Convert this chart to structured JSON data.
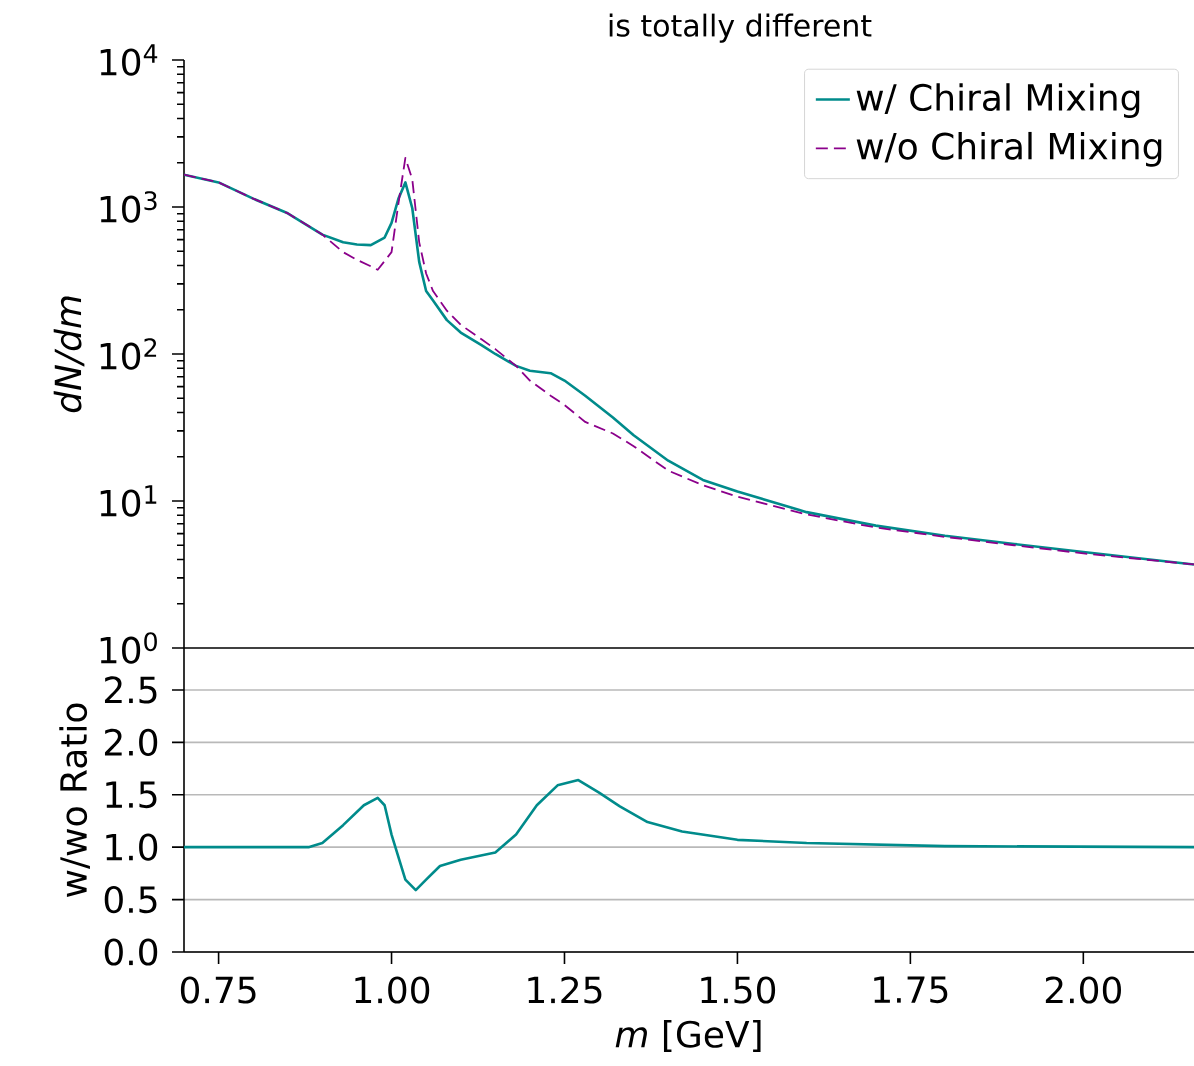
{
  "chart_data": [
    {
      "type": "line",
      "title": "is totally different",
      "ylabel": "dN/dm",
      "log": "y",
      "legend": "top right",
      "tick_labels": "y",
      "xlim": [
        0.7,
        2.16
      ],
      "ylim": [
        1,
        10000
      ],
      "yticks": [
        {
          "value": 1,
          "label": "10$^{0}$"
        },
        {
          "value": 10,
          "label": "10$^{1}$"
        },
        {
          "value": 100,
          "label": "10$^{2}$"
        },
        {
          "value": 1000,
          "label": "10$^{3}$"
        },
        {
          "value": 10000,
          "label": "10$^{4}$"
        }
      ],
      "series": [
        {
          "name": "w/ Chiral Mixing",
          "color": "#008b8b",
          "line_style": "solid",
          "x": [
            0.7,
            0.75,
            0.8,
            0.85,
            0.9,
            0.93,
            0.95,
            0.97,
            0.99,
            1.0,
            1.01,
            1.02,
            1.03,
            1.04,
            1.05,
            1.06,
            1.08,
            1.1,
            1.13,
            1.15,
            1.18,
            1.2,
            1.23,
            1.25,
            1.28,
            1.32,
            1.35,
            1.4,
            1.45,
            1.5,
            1.6,
            1.7,
            1.8,
            1.9,
            2.0,
            2.16
          ],
          "values": [
            1660,
            1470,
            1140,
            906,
            649,
            575,
            556,
            550,
            620,
            780,
            1140,
            1470,
            980,
            423,
            268,
            231,
            170,
            140,
            115,
            100,
            83,
            77,
            74,
            66,
            52,
            37,
            28,
            18.8,
            13.9,
            11.6,
            8.4,
            6.8,
            5.8,
            5.1,
            4.5,
            3.7
          ]
        },
        {
          "name": "w/o Chiral Mixing",
          "color": "#8b008b",
          "line_style": "dashed",
          "x": [
            0.7,
            0.75,
            0.8,
            0.85,
            0.9,
            0.93,
            0.95,
            0.97,
            0.98,
            1.0,
            1.01,
            1.02,
            1.03,
            1.04,
            1.05,
            1.06,
            1.08,
            1.1,
            1.13,
            1.15,
            1.18,
            1.2,
            1.23,
            1.25,
            1.28,
            1.32,
            1.35,
            1.4,
            1.45,
            1.5,
            1.6,
            1.7,
            1.8,
            1.9,
            2.0,
            2.16
          ],
          "values": [
            1660,
            1470,
            1140,
            906,
            649,
            493,
            437,
            395,
            374,
            493,
            1060,
            2160,
            1540,
            575,
            353,
            268,
            197,
            158,
            126,
            108,
            83,
            66,
            52,
            45,
            34.5,
            28.8,
            23.6,
            16.1,
            12.8,
            10.7,
            8.1,
            6.6,
            5.7,
            5.0,
            4.4,
            3.7
          ]
        }
      ]
    },
    {
      "type": "line",
      "xlabel": "*m* [GeV]",
      "ylabel": "w/wo Ratio",
      "grid": "y",
      "xlim": [
        0.7,
        2.16
      ],
      "ylim": [
        0,
        2.9
      ],
      "xticks": [
        {
          "value": 0.75,
          "label": "0.75"
        },
        {
          "value": 1.0,
          "label": "1.00"
        },
        {
          "value": 1.25,
          "label": "1.25"
        },
        {
          "value": 1.5,
          "label": "1.50"
        },
        {
          "value": 1.75,
          "label": "1.75"
        },
        {
          "value": 2.0,
          "label": "2.00"
        }
      ],
      "yticks": [
        {
          "value": 0,
          "label": "0.0"
        },
        {
          "value": 0.5,
          "label": "0.5"
        },
        {
          "value": 1.0,
          "label": "1.0"
        },
        {
          "value": 1.5,
          "label": "1.5"
        },
        {
          "value": 2.0,
          "label": "2.0"
        },
        {
          "value": 2.5,
          "label": "2.5"
        }
      ],
      "series": [
        {
          "color": "#008b8b",
          "line_style": "solid",
          "x": [
            0.7,
            0.88,
            0.9,
            0.93,
            0.96,
            0.98,
            0.99,
            1.0,
            1.02,
            1.035,
            1.05,
            1.07,
            1.1,
            1.15,
            1.18,
            1.21,
            1.24,
            1.27,
            1.3,
            1.33,
            1.37,
            1.42,
            1.5,
            1.6,
            1.8,
            2.16
          ],
          "values": [
            1.0,
            1.0,
            1.04,
            1.21,
            1.4,
            1.47,
            1.4,
            1.12,
            0.69,
            0.59,
            0.69,
            0.82,
            0.88,
            0.95,
            1.12,
            1.4,
            1.59,
            1.64,
            1.52,
            1.39,
            1.24,
            1.15,
            1.07,
            1.04,
            1.01,
            1.0
          ]
        }
      ]
    }
  ]
}
